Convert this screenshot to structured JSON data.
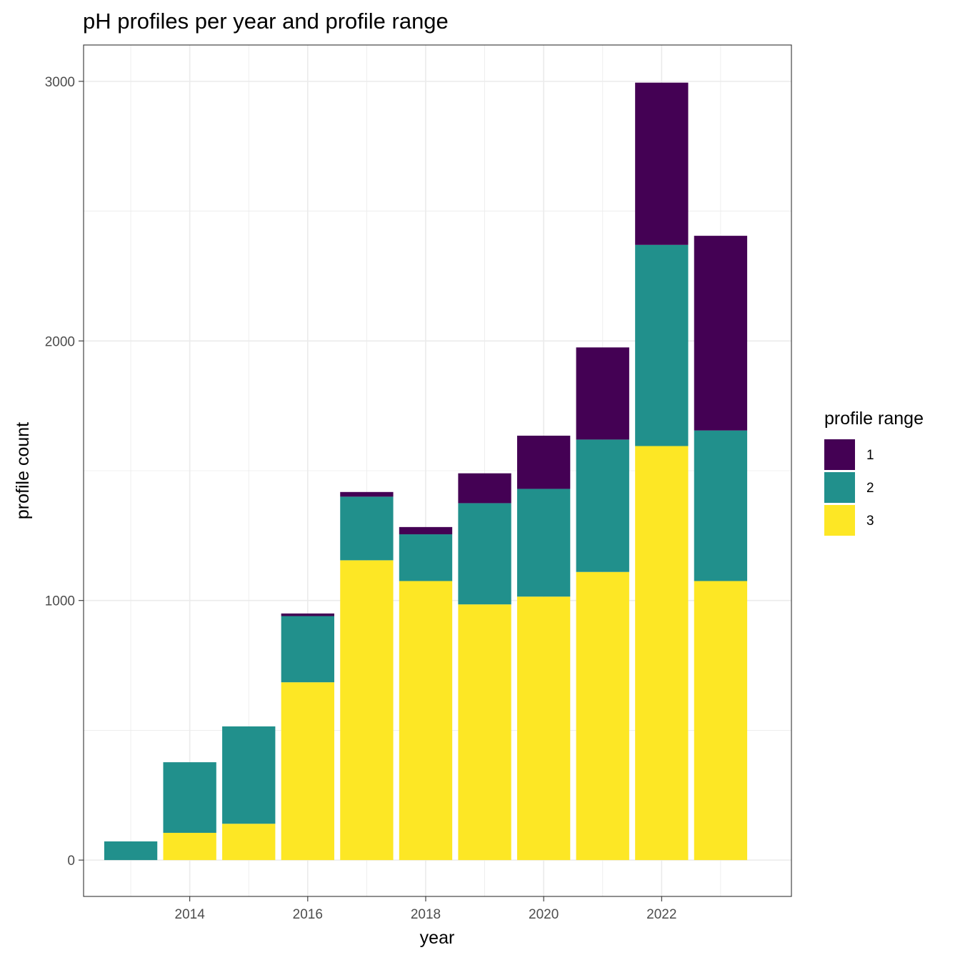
{
  "chart_data": {
    "type": "bar",
    "stacked": true,
    "title": "pH profiles per year and profile range",
    "xlabel": "year",
    "ylabel": "profile count",
    "categories": [
      2013,
      2014,
      2015,
      2016,
      2017,
      2018,
      2019,
      2020,
      2021,
      2022,
      2023
    ],
    "x_ticks": [
      "2014",
      "2016",
      "2018",
      "2020",
      "2022"
    ],
    "y_ticks": [
      "0",
      "1000",
      "2000",
      "3000"
    ],
    "xlim": [
      2012.2,
      2024.2
    ],
    "ylim": [
      -140,
      3140
    ],
    "series": [
      {
        "name": "3",
        "color": "#FDE725",
        "values": [
          0,
          105,
          140,
          685,
          1155,
          1075,
          985,
          1015,
          1110,
          1595,
          1075
        ]
      },
      {
        "name": "2",
        "color": "#21908C",
        "values": [
          72,
          272,
          375,
          255,
          245,
          180,
          390,
          415,
          510,
          775,
          580
        ]
      },
      {
        "name": "1",
        "color": "#440154",
        "values": [
          0,
          0,
          0,
          10,
          18,
          28,
          115,
          205,
          355,
          625,
          750
        ]
      }
    ],
    "legend": {
      "title": "profile range",
      "position": "right",
      "entries": [
        {
          "label": "1",
          "color": "#440154"
        },
        {
          "label": "2",
          "color": "#21908C"
        },
        {
          "label": "3",
          "color": "#FDE725"
        }
      ]
    },
    "grid": true
  }
}
